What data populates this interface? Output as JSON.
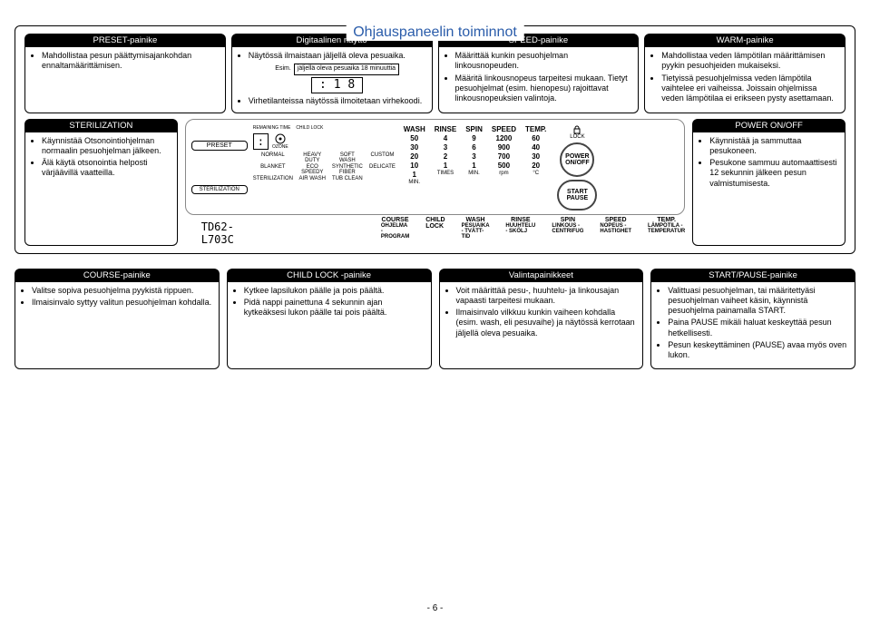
{
  "title": "Ohjauspaneelin toiminnot",
  "top_cards": [
    {
      "hdr": "PRESET-painike",
      "items": [
        "Mahdollistaa pesun päättymisajankohdan ennaltamäärittämisen."
      ]
    },
    {
      "hdr": "Digitaalinen näyttö",
      "items": [
        "Näytössä ilmaistaan jäljellä oleva pesuaika.",
        "__SAMPLE__",
        "Virhetilanteissa näytössä ilmoitetaan virhekoodi."
      ]
    },
    {
      "hdr": "SPEED-painike",
      "items": [
        "Määrittää kunkin pesuohjelman linkousnopeuden.",
        "Määritä linkousnopeus tarpeitesi mukaan. Tietyt pesuohjelmat (esim. hienopesu) rajoittavat linkousnopeuksien valintoja."
      ]
    },
    {
      "hdr": "WARM-painike",
      "items": [
        "Mahdollistaa veden lämpötilan määrittämisen pyykin pesuohjeiden mukaiseksi.",
        "Tietyissä pesuohjelmissa veden lämpötila vaihtelee eri vaiheissa. Joissain ohjelmissa veden lämpötilaa ei erikseen pysty asettamaan."
      ]
    }
  ],
  "disp_sample": {
    "prefix": "Esim.",
    "text": "jäljellä oleva pesuaika 18 minuuttia",
    "seg": ": 1 8"
  },
  "left_card": {
    "hdr": "STERILIZATION",
    "items": [
      "Käynnistää Otsonointiohjelman normaalin pesuohjelman jälkeen.",
      "Älä käytä otsonointia helposti värjäävillä vaatteilla."
    ]
  },
  "right_card": {
    "hdr": "POWER ON/OFF",
    "items": [
      "Käynnistää ja sammuttaa pesukoneen.",
      "Pesukone sammuu automaattisesti 12 sekunnin jälkeen pesun valmistumisesta."
    ]
  },
  "panel": {
    "preset_btn": "PRESET",
    "ster_btn": "STERILIZATION",
    "remaining": "REMAINING TIME",
    "childlock": "CHILD LOCK",
    "ozone": "OZONE",
    "seg": ":",
    "modes_r1": [
      "NORMAL",
      "HEAVY DUTY",
      "SOFT WASH",
      "CUSTOM"
    ],
    "modes_r2": [
      "BLANKET",
      "ECO SPEEDY",
      "SYNTHETIC FIBER",
      "DELICATE"
    ],
    "modes_r3": [
      "STERILIZATION",
      "AIR WASH",
      "TUB CLEAN",
      ""
    ],
    "cols": [
      {
        "hdr": "WASH",
        "vals": [
          "50",
          "30",
          "20",
          "10",
          "1"
        ],
        "unit": "MIN."
      },
      {
        "hdr": "RINSE",
        "vals": [
          "4",
          "3",
          "2",
          "1"
        ],
        "unit": "TIMES"
      },
      {
        "hdr": "SPIN",
        "vals": [
          "9",
          "6",
          "3",
          "1"
        ],
        "unit": "MIN."
      },
      {
        "hdr": "SPEED",
        "vals": [
          "1200",
          "900",
          "700",
          "500"
        ],
        "unit": "rpm"
      },
      {
        "hdr": "TEMP.",
        "vals": [
          "60",
          "40",
          "30",
          "20"
        ],
        "unit": "°C"
      }
    ],
    "lock_label": "LOCK",
    "power_btn": "POWER ON/OFF",
    "start_btn": "START PAUSE"
  },
  "model": "TD62-L703C",
  "legend": [
    {
      "top": "COURSE",
      "sub": "OHJELMA - PROGRAM"
    },
    {
      "top": "CHILD LOCK",
      "sub": ""
    },
    {
      "top": "WASH",
      "sub": "PESUAIKA - TVÄTT-TID"
    },
    {
      "top": "RINSE",
      "sub": "HUUHTELU - SKÖLJ"
    },
    {
      "top": "SPIN",
      "sub": "LINKOUS - CENTRIFUG"
    },
    {
      "top": "SPEED",
      "sub": "NOPEUS - HASTIGHET"
    },
    {
      "top": "TEMP.",
      "sub": "LÄMPÖTILA - TEMPERATUR"
    }
  ],
  "bottom_cards": [
    {
      "hdr": "COURSE-painike",
      "items": [
        "Valitse sopiva pesuohjelma pyykistä rippuen.",
        "Ilmaisinvalo syttyy valitun pesuohjelman kohdalla."
      ]
    },
    {
      "hdr": "CHILD LOCK -painike",
      "items": [
        "Kytkee lapsilukon päälle ja pois päältä.",
        "Pidä nappi painettuna 4 sekunnin ajan kytkeäksesi lukon päälle tai pois päältä."
      ]
    },
    {
      "hdr": "Valintapainikkeet",
      "items": [
        "Voit määrittää pesu-, huuhtelu- ja linkousajan vapaasti tarpeitesi mukaan.",
        "Ilmaisinvalo vilkkuu kunkin vaiheen kohdalla (esim. wash, eli pesuvaihe) ja näytössä kerrotaan jäljellä oleva pesuaika."
      ]
    },
    {
      "hdr": "START/PAUSE-painike",
      "items": [
        "Valittuasi pesuohjelman, tai määritettyäsi pesuohjelman vaiheet käsin, käynnistä pesuohjelma painamalla START.",
        "Paina PAUSE mikäli haluat keskeyttää pesun hetkellisesti.",
        "Pesun keskeyttäminen (PAUSE) avaa myös oven lukon."
      ]
    }
  ],
  "page_num": "- 6 -"
}
